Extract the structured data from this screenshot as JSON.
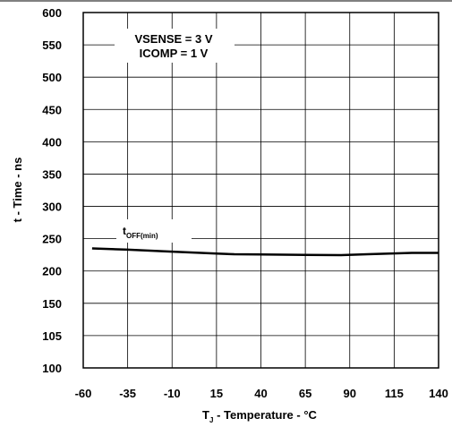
{
  "chart_data": {
    "type": "line",
    "xlabel_main": "T",
    "xlabel_sub": "J",
    "xlabel_rest": " - Temperature - °C",
    "ylabel": "t - Time - ns",
    "x_ticks": [
      "-60",
      "-35",
      "-10",
      "15",
      "40",
      "65",
      "90",
      "115",
      "140"
    ],
    "y_ticks": [
      "100",
      "105",
      "150",
      "200",
      "250",
      "300",
      "350",
      "400",
      "450",
      "500",
      "550",
      "600"
    ],
    "xlim": [
      -60,
      140
    ],
    "annotations": [
      "VSENSE = 3 V",
      "ICOMP = 1 V"
    ],
    "grid": true,
    "series": [
      {
        "label_main": "t",
        "label_sub": "OFF(min)",
        "x": [
          -55,
          -35,
          -10,
          15,
          25,
          40,
          65,
          85,
          100,
          125,
          140
        ],
        "values": [
          235,
          233,
          230,
          227,
          226,
          225.5,
          225,
          224.5,
          226,
          228,
          228
        ]
      }
    ]
  }
}
